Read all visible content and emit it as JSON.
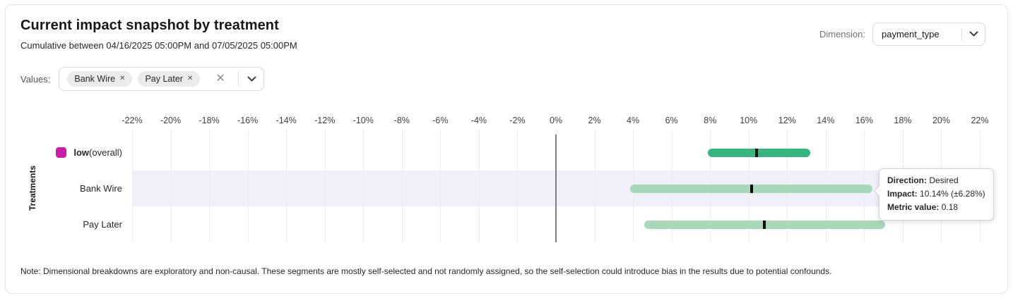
{
  "header": {
    "title": "Current impact snapshot by treatment",
    "subtitle": "Cumulative between 04/16/2025 05:00PM and 07/05/2025 05:00PM",
    "dimension_label": "Dimension:",
    "dimension_value": "payment_type"
  },
  "filters": {
    "values_label": "Values:",
    "chips": [
      "Bank Wire",
      "Pay Later"
    ]
  },
  "tooltip": {
    "lines": [
      {
        "label": "Direction:",
        "value": "Desired"
      },
      {
        "label": "Impact:",
        "value": "10.14% (±6.28%)"
      },
      {
        "label": "Metric value:",
        "value": "0.18"
      }
    ]
  },
  "note": "Note: Dimensional breakdowns are exploratory and non-causal. These segments are mostly self-selected and not randomly assigned, so the self-selection could introduce bias in the results due to potential confounds.",
  "chart_data": {
    "type": "bar",
    "subtype": "horizontal-interval-with-confidence",
    "ylabel": "Treatments",
    "x_axis": {
      "min": -22,
      "max": 22,
      "step": 2,
      "unit": "%"
    },
    "grid": true,
    "rows": [
      {
        "label": "low",
        "label_suffix": " (overall)",
        "swatch_color": "#d01ba8",
        "bar_color": "#35b57f",
        "impact": 10.4,
        "ci_low": 7.9,
        "ci_high": 13.2,
        "highlighted": false
      },
      {
        "label": "Bank Wire",
        "bar_color": "#a7d9b8",
        "impact": 10.14,
        "ci_low": 3.86,
        "ci_high": 16.42,
        "highlighted": true
      },
      {
        "label": "Pay Later",
        "bar_color": "#a7d9b8",
        "impact": 10.8,
        "ci_low": 4.6,
        "ci_high": 17.1,
        "highlighted": false
      }
    ],
    "marker_color": "#0a0a0a",
    "highlight_band_color": "#f0f0fb",
    "zero_line": true
  }
}
